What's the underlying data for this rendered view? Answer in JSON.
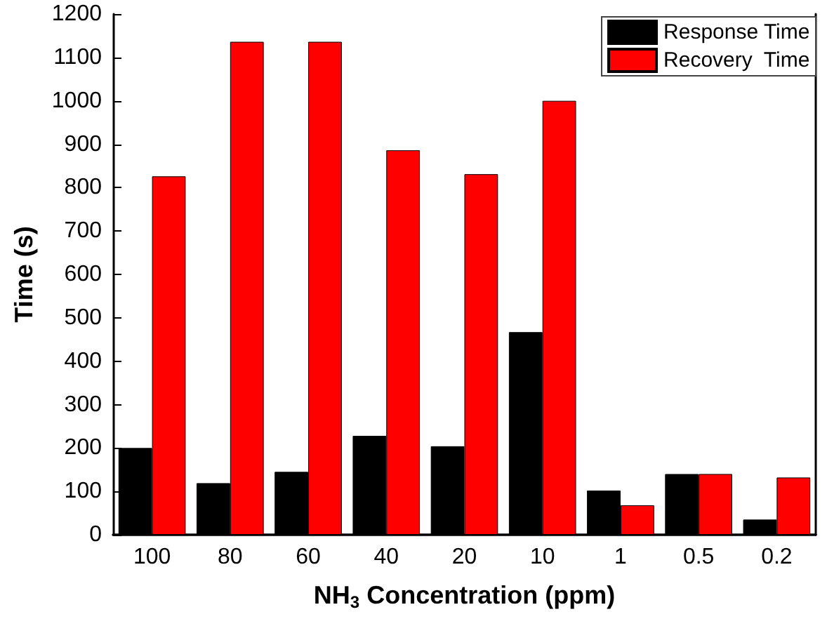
{
  "chart_data": {
    "type": "bar",
    "xlabel": "NH$_{3}$ Concentration (ppm)",
    "ylabel": "Time (s)",
    "categories": [
      "100",
      "80",
      "60",
      "40",
      "20",
      "10",
      "1",
      "0.5",
      "0.2"
    ],
    "series": [
      {
        "name": "Response Time",
        "color": "#000000",
        "values": [
          200,
          119,
          145,
          228,
          204,
          467,
          102,
          140,
          35
        ]
      },
      {
        "name": "Recovery  Time",
        "color": "#ff0000",
        "values": [
          826,
          1136,
          1136,
          886,
          831,
          1000,
          68,
          140,
          132
        ]
      }
    ],
    "ylim": [
      0,
      1200
    ],
    "yticks": [
      0,
      100,
      200,
      300,
      400,
      500,
      600,
      700,
      800,
      900,
      1000,
      1100,
      1200
    ],
    "grid": false,
    "legend": "top right"
  }
}
